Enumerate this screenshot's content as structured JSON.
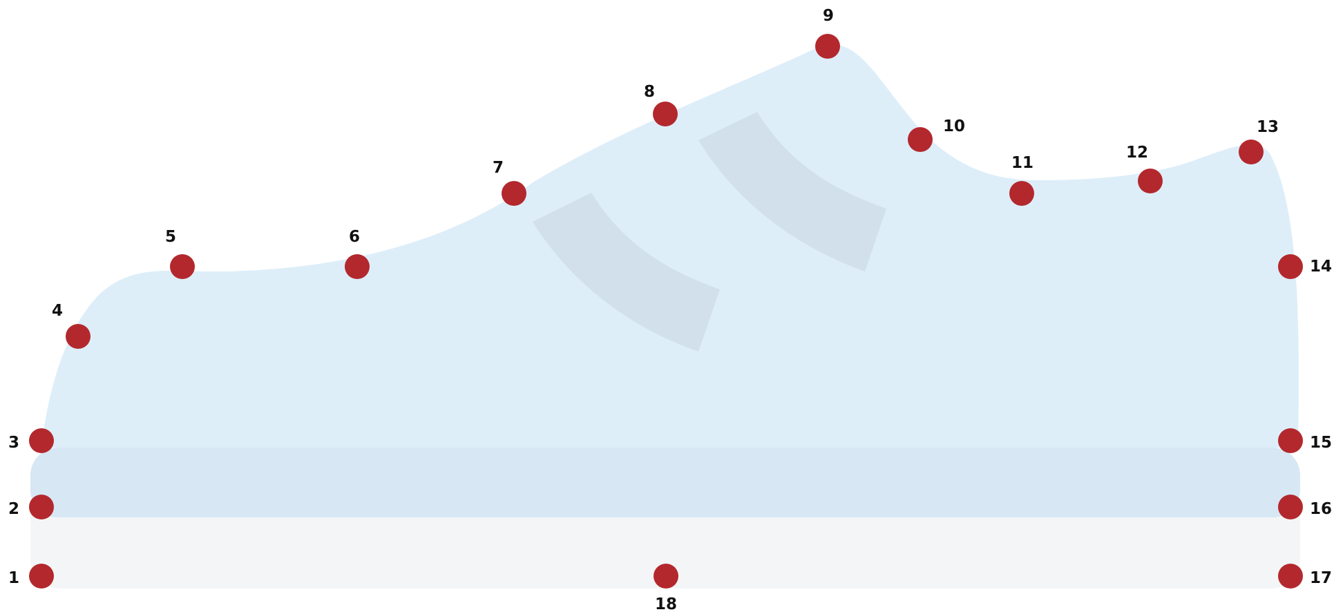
{
  "colors": {
    "upper": "#ddeef9",
    "midsole": "#d7e7f4",
    "outsole": "#f4f5f7",
    "stripes": "#d1e0ea",
    "marker": "#b3282d",
    "label": "#111111"
  },
  "points": [
    {
      "id": "1",
      "label": "1"
    },
    {
      "id": "2",
      "label": "2"
    },
    {
      "id": "3",
      "label": "3"
    },
    {
      "id": "4",
      "label": "4"
    },
    {
      "id": "5",
      "label": "5"
    },
    {
      "id": "6",
      "label": "6"
    },
    {
      "id": "7",
      "label": "7"
    },
    {
      "id": "8",
      "label": "8"
    },
    {
      "id": "9",
      "label": "9"
    },
    {
      "id": "10",
      "label": "10"
    },
    {
      "id": "11",
      "label": "11"
    },
    {
      "id": "12",
      "label": "12"
    },
    {
      "id": "13",
      "label": "13"
    },
    {
      "id": "14",
      "label": "14"
    },
    {
      "id": "15",
      "label": "15"
    },
    {
      "id": "16",
      "label": "16"
    },
    {
      "id": "17",
      "label": "17"
    },
    {
      "id": "18",
      "label": "18"
    }
  ]
}
